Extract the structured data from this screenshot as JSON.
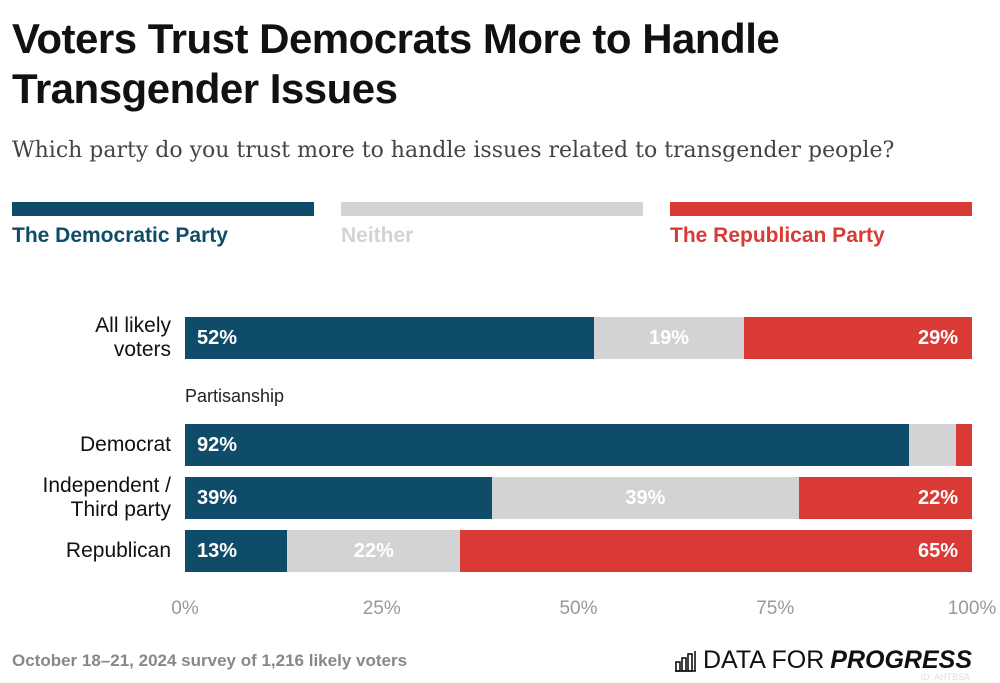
{
  "title": "Voters Trust Democrats More to Handle Transgender Issues",
  "subtitle": "Which party do you trust more to handle issues related to transgender people?",
  "footer": "October 18–21, 2024 survey of 1,216 likely voters",
  "logo": {
    "text1": "DATA FOR",
    "text2": "PROGRESS",
    "id": "ID: AHTBSA"
  },
  "chart_data": {
    "type": "bar",
    "orientation": "horizontal",
    "stacked": true,
    "series": [
      {
        "name": "The Democratic Party",
        "color": "#0f4c6a",
        "values": [
          52,
          92,
          39,
          13
        ],
        "labels": [
          "52%",
          "92%",
          "39%",
          "13%"
        ]
      },
      {
        "name": "Neither",
        "color": "#d1d3d4",
        "values": [
          19,
          6,
          39,
          22
        ],
        "labels": [
          "19%",
          "",
          "39%",
          "22%"
        ]
      },
      {
        "name": "The Republican Party",
        "color": "#d93a35",
        "values": [
          29,
          2,
          22,
          65
        ],
        "labels": [
          "29%",
          "",
          "22%",
          "65%"
        ]
      }
    ],
    "categories": [
      "All likely voters",
      "Democrat",
      "Independent / Third party",
      "Republican"
    ],
    "group_label": "Partisanship",
    "xlim": [
      0,
      100
    ],
    "ticks": [
      "0%",
      "25%",
      "50%",
      "75%",
      "100%"
    ],
    "legend": "top"
  }
}
